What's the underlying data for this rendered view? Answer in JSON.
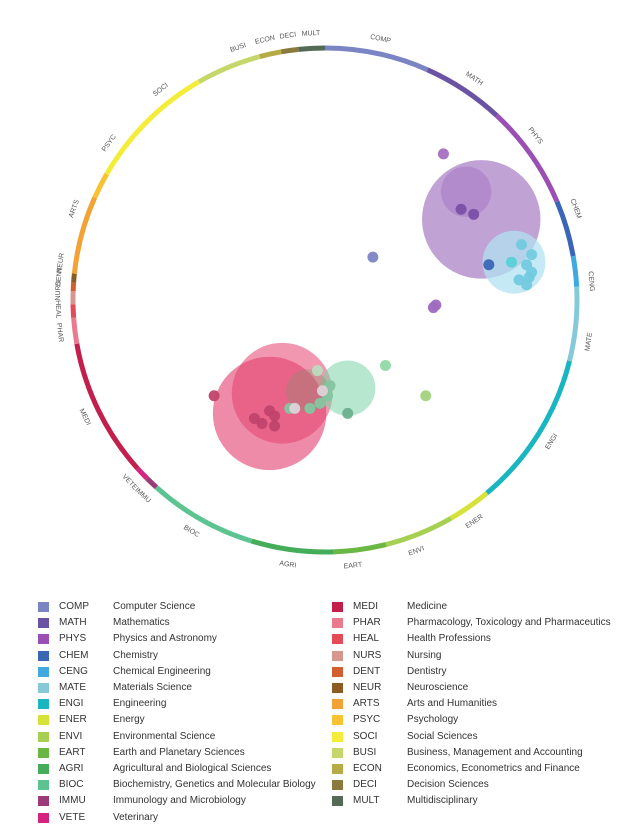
{
  "ring_segments": [
    {
      "code": "COMP",
      "color": "#7b85c3",
      "a0": 0,
      "a1": 24
    },
    {
      "code": "MATH",
      "color": "#6a53a3",
      "a0": 24,
      "a1": 43
    },
    {
      "code": "PHYS",
      "color": "#9b4fb4",
      "a0": 43,
      "a1": 67
    },
    {
      "code": "CHEM",
      "color": "#3b66b6",
      "a0": 67,
      "a1": 80
    },
    {
      "code": "CENG",
      "color": "#3fa9e0",
      "a0": 80,
      "a1": 87
    },
    {
      "code": "MATE",
      "color": "#86cad9",
      "a0": 87,
      "a1": 104
    },
    {
      "code": "ENGI",
      "color": "#19b5c0",
      "a0": 104,
      "a1": 140
    },
    {
      "code": "ENER",
      "color": "#d6e23a",
      "a0": 140,
      "a1": 150
    },
    {
      "code": "ENVI",
      "color": "#a7cf52",
      "a0": 150,
      "a1": 166
    },
    {
      "code": "EART",
      "color": "#6bb744",
      "a0": 166,
      "a1": 178
    },
    {
      "code": "AGRI",
      "color": "#45ad5a",
      "a0": 178,
      "a1": 197
    },
    {
      "code": "BIOC",
      "color": "#5bc491",
      "a0": 197,
      "a1": 222
    },
    {
      "code": "IMMU",
      "color": "#9c3b78",
      "a0": 222,
      "a1": 225
    },
    {
      "code": "VETE",
      "color": "#d6237f",
      "a0": 225,
      "a1": 228
    },
    {
      "code": "MEDI",
      "color": "#c21f4d",
      "a0": 228,
      "a1": 260
    },
    {
      "code": "PHAR",
      "color": "#ea7b8e",
      "a0": 260,
      "a1": 266
    },
    {
      "code": "HEAL",
      "color": "#e24b57",
      "a0": 266,
      "a1": 269
    },
    {
      "code": "NURS",
      "color": "#d6988e",
      "a0": 269,
      "a1": 272
    },
    {
      "code": "DENT",
      "color": "#d0612e",
      "a0": 272,
      "a1": 274
    },
    {
      "code": "NEUR",
      "color": "#8a5b22",
      "a0": 274,
      "a1": 276
    },
    {
      "code": "ARTS",
      "color": "#f3a236",
      "a0": 276,
      "a1": 294
    },
    {
      "code": "PSYC",
      "color": "#f8c232",
      "a0": 294,
      "a1": 300
    },
    {
      "code": "SOCI",
      "color": "#f3ed3a",
      "a0": 300,
      "a1": 330
    },
    {
      "code": "BUSI",
      "color": "#c5d76a",
      "a0": 330,
      "a1": 345
    },
    {
      "code": "ECON",
      "color": "#b6ac46",
      "a0": 345,
      "a1": 350
    },
    {
      "code": "DECI",
      "color": "#8a7a3e",
      "a0": 350,
      "a1": 354
    },
    {
      "code": "MULT",
      "color": "#556a55",
      "a0": 354,
      "a1": 360
    }
  ],
  "ring_labels": [
    {
      "text": "COMP",
      "angle": 12
    },
    {
      "text": "MATH",
      "angle": 34
    },
    {
      "text": "PHYS",
      "angle": 52
    },
    {
      "text": "CHEM",
      "angle": 70
    },
    {
      "text": "CENG",
      "angle": 86
    },
    {
      "text": "MATE",
      "angle": 99
    },
    {
      "text": "ENGI",
      "angle": 122
    },
    {
      "text": "ENER",
      "angle": 146
    },
    {
      "text": "ENVI",
      "angle": 160
    },
    {
      "text": "EART",
      "angle": 174
    },
    {
      "text": "AGRI",
      "angle": 188
    },
    {
      "text": "BIOC",
      "angle": 210
    },
    {
      "text": "IMMU",
      "angle": 223
    },
    {
      "text": "VETE",
      "angle": 227
    },
    {
      "text": "MEDI",
      "angle": 244
    },
    {
      "text": "PHAR",
      "angle": 263
    },
    {
      "text": "HEAL",
      "angle": 268
    },
    {
      "text": "NURS",
      "angle": 272
    },
    {
      "text": "DENT",
      "angle": 275
    },
    {
      "text": "NEUR",
      "angle": 278
    },
    {
      "text": "ARTS",
      "angle": 290
    },
    {
      "text": "PSYC",
      "angle": 306
    },
    {
      "text": "SOCI",
      "angle": 322
    },
    {
      "text": "BUSI",
      "angle": 341
    },
    {
      "text": "ECON",
      "angle": 347
    },
    {
      "text": "DECI",
      "angle": 352
    },
    {
      "text": "MULT",
      "angle": 357
    }
  ],
  "bubbles": [
    {
      "color": "#8e55b0",
      "opacity": 0.55,
      "dx": 0.62,
      "dy": -0.32,
      "r": 0.235
    },
    {
      "color": "#a77bc7",
      "opacity": 0.6,
      "dx": 0.56,
      "dy": -0.43,
      "r": 0.1
    },
    {
      "color": "#b2e1f2",
      "opacity": 0.75,
      "dx": 0.75,
      "dy": -0.15,
      "r": 0.125
    },
    {
      "color": "#e23d6e",
      "opacity": 0.6,
      "dx": -0.22,
      "dy": 0.45,
      "r": 0.225
    },
    {
      "color": "#e5436f",
      "opacity": 0.55,
      "dx": -0.17,
      "dy": 0.37,
      "r": 0.2
    },
    {
      "color": "#7cd3a5",
      "opacity": 0.55,
      "dx": 0.09,
      "dy": 0.35,
      "r": 0.11
    },
    {
      "color": "#8a8a6a",
      "opacity": 0.35,
      "dx": -0.07,
      "dy": 0.36,
      "r": 0.085
    }
  ],
  "dots": [
    {
      "color": "#7c86c6",
      "dx": 0.19,
      "dy": -0.17
    },
    {
      "color": "#a56fc2",
      "dx": 0.47,
      "dy": -0.58
    },
    {
      "color": "#9f6ac0",
      "dx": 0.43,
      "dy": 0.03
    },
    {
      "color": "#9f6ac0",
      "dx": 0.44,
      "dy": 0.02
    },
    {
      "color": "#7b4fa7",
      "dx": 0.54,
      "dy": -0.36
    },
    {
      "color": "#7b4fa7",
      "dx": 0.59,
      "dy": -0.34
    },
    {
      "color": "#3b66b6",
      "dx": 0.65,
      "dy": -0.14
    },
    {
      "color": "#5ad0d7",
      "dx": 0.74,
      "dy": -0.15
    },
    {
      "color": "#73cadf",
      "dx": 0.8,
      "dy": -0.14
    },
    {
      "color": "#73cadf",
      "dx": 0.82,
      "dy": -0.11
    },
    {
      "color": "#73cadf",
      "dx": 0.8,
      "dy": -0.06
    },
    {
      "color": "#73cadf",
      "dx": 0.82,
      "dy": -0.18
    },
    {
      "color": "#73cadf",
      "dx": 0.77,
      "dy": -0.08
    },
    {
      "color": "#73cadf",
      "dx": 0.78,
      "dy": -0.22
    },
    {
      "color": "#73cadf",
      "dx": 0.81,
      "dy": -0.09
    },
    {
      "color": "#b9dbbf",
      "dx": -0.03,
      "dy": 0.28
    },
    {
      "color": "#8fd9a6",
      "dx": 0.24,
      "dy": 0.26
    },
    {
      "color": "#a3d27e",
      "dx": 0.4,
      "dy": 0.38
    },
    {
      "color": "#c0436b",
      "dx": -0.44,
      "dy": 0.38
    },
    {
      "color": "#c0436b",
      "dx": -0.28,
      "dy": 0.47
    },
    {
      "color": "#c0436b",
      "dx": -0.22,
      "dy": 0.44
    },
    {
      "color": "#c0436b",
      "dx": -0.2,
      "dy": 0.46
    },
    {
      "color": "#c0436b",
      "dx": -0.25,
      "dy": 0.49
    },
    {
      "color": "#c0436b",
      "dx": -0.2,
      "dy": 0.5
    },
    {
      "color": "#84c5a0",
      "dx": -0.14,
      "dy": 0.43
    },
    {
      "color": "#84c5a0",
      "dx": -0.06,
      "dy": 0.43
    },
    {
      "color": "#84c5a0",
      "dx": -0.02,
      "dy": 0.41
    },
    {
      "color": "#84c5a0",
      "dx": 0.01,
      "dy": 0.38
    },
    {
      "color": "#84c5a0",
      "dx": 0.02,
      "dy": 0.34
    },
    {
      "color": "#6bb08e",
      "dx": 0.09,
      "dy": 0.45
    },
    {
      "color": "#ddd3d9",
      "dx": -0.12,
      "dy": 0.43
    },
    {
      "color": "#e0d0d7",
      "dx": -0.01,
      "dy": 0.36
    }
  ],
  "legend_left": [
    {
      "code": "COMP",
      "name": "Computer Science",
      "color": "#7b85c3"
    },
    {
      "code": "MATH",
      "name": "Mathematics",
      "color": "#6a53a3"
    },
    {
      "code": "PHYS",
      "name": "Physics and Astronomy",
      "color": "#9b4fb4"
    },
    {
      "code": "CHEM",
      "name": "Chemistry",
      "color": "#3b66b6"
    },
    {
      "code": "CENG",
      "name": "Chemical Engineering",
      "color": "#3fa9e0"
    },
    {
      "code": "MATE",
      "name": "Materials Science",
      "color": "#86cad9"
    },
    {
      "code": "ENGI",
      "name": "Engineering",
      "color": "#19b5c0"
    },
    {
      "code": "ENER",
      "name": "Energy",
      "color": "#d6e23a"
    },
    {
      "code": "ENVI",
      "name": "Environmental Science",
      "color": "#a7cf52"
    },
    {
      "code": "EART",
      "name": "Earth and Planetary Sciences",
      "color": "#6bb744"
    },
    {
      "code": "AGRI",
      "name": "Agricultural and Biological Sciences",
      "color": "#45ad5a"
    },
    {
      "code": "BIOC",
      "name": "Biochemistry, Genetics and Molecular Biology",
      "color": "#5bc491"
    },
    {
      "code": "IMMU",
      "name": "Immunology and Microbiology",
      "color": "#9c3b78"
    },
    {
      "code": "VETE",
      "name": "Veterinary",
      "color": "#d6237f"
    }
  ],
  "legend_right": [
    {
      "code": "MEDI",
      "name": "Medicine",
      "color": "#c21f4d"
    },
    {
      "code": "PHAR",
      "name": "Pharmacology, Toxicology and Pharmaceutics",
      "color": "#ea7b8e"
    },
    {
      "code": "HEAL",
      "name": "Health Professions",
      "color": "#e24b57"
    },
    {
      "code": "NURS",
      "name": "Nursing",
      "color": "#d6988e"
    },
    {
      "code": "DENT",
      "name": "Dentistry",
      "color": "#d0612e"
    },
    {
      "code": "NEUR",
      "name": "Neuroscience",
      "color": "#8a5b22"
    },
    {
      "code": "ARTS",
      "name": "Arts and Humanities",
      "color": "#f3a236"
    },
    {
      "code": "PSYC",
      "name": "Psychology",
      "color": "#f8c232"
    },
    {
      "code": "SOCI",
      "name": "Social Sciences",
      "color": "#f3ed3a"
    },
    {
      "code": "BUSI",
      "name": "Business, Management and Accounting",
      "color": "#c5d76a"
    },
    {
      "code": "ECON",
      "name": "Economics, Econometrics and Finance",
      "color": "#b6ac46"
    },
    {
      "code": "DECI",
      "name": "Decision Sciences",
      "color": "#8a7a3e"
    },
    {
      "code": "MULT",
      "name": "Multidisciplinary",
      "color": "#556a55"
    }
  ]
}
